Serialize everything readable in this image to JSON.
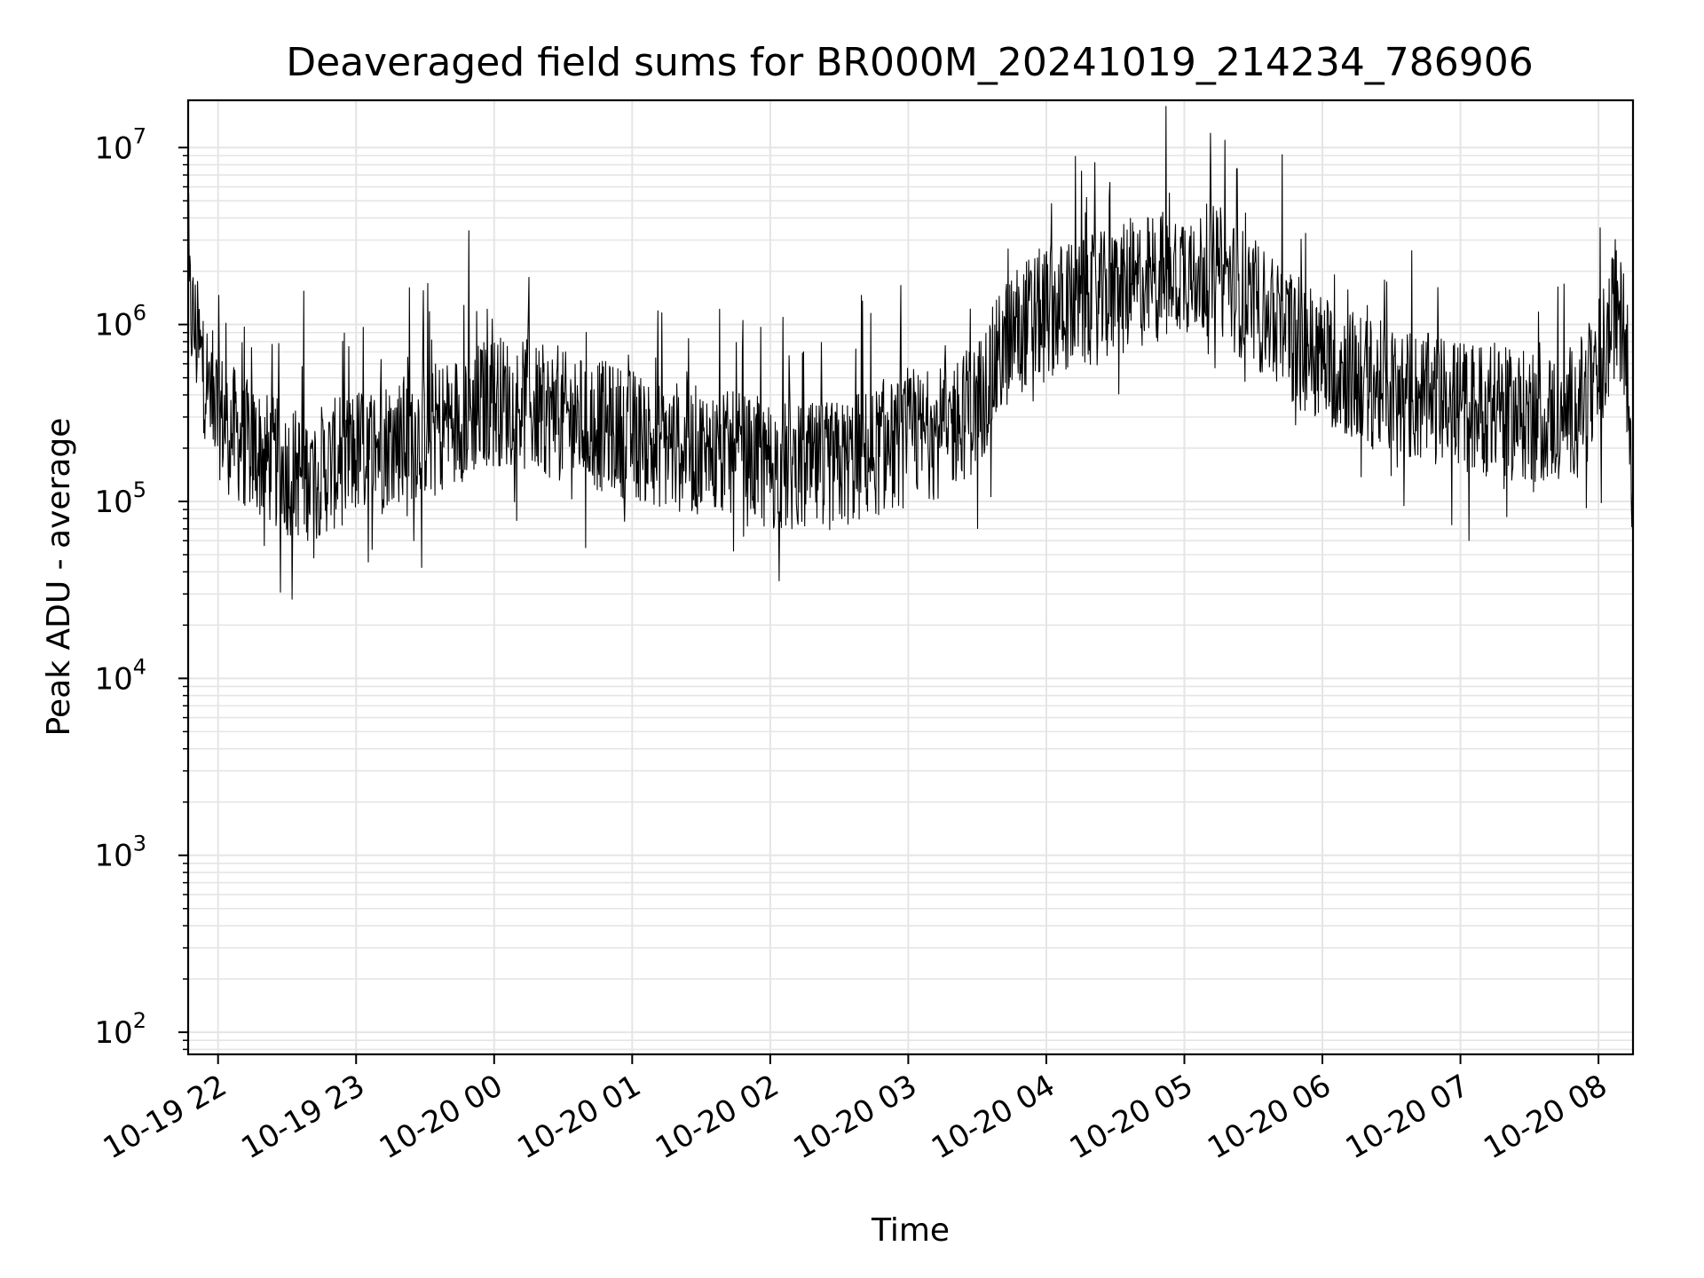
{
  "chart_data": {
    "type": "line",
    "title": "Deaveraged field sums for BR000M_20241019_214234_786906",
    "xlabel": "Time",
    "ylabel": "Peak ADU - average",
    "yscale": "log",
    "xlim": [
      "2024-10-19T21:47:00",
      "2024-10-20T08:15:00"
    ],
    "ylim": [
      75,
      18500000
    ],
    "grid": true,
    "x_ticks": [
      "10-19 22",
      "10-19 23",
      "10-20 00",
      "10-20 01",
      "10-20 02",
      "10-20 03",
      "10-20 04",
      "10-20 05",
      "10-20 06",
      "10-20 07",
      "10-20 08"
    ],
    "y_ticks": [
      {
        "value": 100,
        "base": "10",
        "exp": "2"
      },
      {
        "value": 1000,
        "base": "10",
        "exp": "3"
      },
      {
        "value": 10000,
        "base": "10",
        "exp": "4"
      },
      {
        "value": 100000,
        "base": "10",
        "exp": "5"
      },
      {
        "value": 1000000,
        "base": "10",
        "exp": "6"
      },
      {
        "value": 10000000,
        "base": "10",
        "exp": "7"
      }
    ],
    "line_color": "#000000",
    "grid_color": "#e5e5e5",
    "series": [
      {
        "values": [
          [
            "2024-10-19T21:47:00",
            1400000
          ],
          [
            "2024-10-19T21:50:00",
            900000
          ],
          [
            "2024-10-19T21:53:00",
            600000
          ],
          [
            "2024-10-19T21:56:00",
            450000
          ],
          [
            "2024-10-19T22:00:00",
            320000
          ],
          [
            "2024-10-19T22:10:00",
            220000
          ],
          [
            "2024-10-19T22:20:00",
            180000
          ],
          [
            "2024-10-19T22:30:00",
            150000
          ],
          [
            "2024-10-19T22:40:00",
            140000
          ],
          [
            "2024-10-19T22:50:00",
            160000
          ],
          [
            "2024-10-19T23:00:00",
            190000
          ],
          [
            "2024-10-19T23:15:00",
            220000
          ],
          [
            "2024-10-19T23:30:00",
            250000
          ],
          [
            "2024-10-19T23:45:00",
            300000
          ],
          [
            "2024-10-20T00:00:00",
            380000
          ],
          [
            "2024-10-20T00:15:00",
            340000
          ],
          [
            "2024-10-20T00:30:00",
            300000
          ],
          [
            "2024-10-20T00:45:00",
            270000
          ],
          [
            "2024-10-20T01:00:00",
            240000
          ],
          [
            "2024-10-20T01:15:00",
            210000
          ],
          [
            "2024-10-20T01:30:00",
            190000
          ],
          [
            "2024-10-20T01:45:00",
            175000
          ],
          [
            "2024-10-20T02:00:00",
            160000
          ],
          [
            "2024-10-20T02:15:00",
            150000
          ],
          [
            "2024-10-20T02:30:00",
            160000
          ],
          [
            "2024-10-20T02:45:00",
            190000
          ],
          [
            "2024-10-20T03:00:00",
            220000
          ],
          [
            "2024-10-20T03:15:00",
            250000
          ],
          [
            "2024-10-20T03:30:00",
            350000
          ],
          [
            "2024-10-20T03:45:00",
            900000
          ],
          [
            "2024-10-20T04:00:00",
            1200000
          ],
          [
            "2024-10-20T04:15:00",
            1300000
          ],
          [
            "2024-10-20T04:30:00",
            1500000
          ],
          [
            "2024-10-20T04:45:00",
            1800000
          ],
          [
            "2024-10-20T05:00:00",
            2100000
          ],
          [
            "2024-10-20T05:15:00",
            2000000
          ],
          [
            "2024-10-20T05:30:00",
            1300000
          ],
          [
            "2024-10-20T05:45:00",
            900000
          ],
          [
            "2024-10-20T06:00:00",
            650000
          ],
          [
            "2024-10-20T06:15:00",
            500000
          ],
          [
            "2024-10-20T06:30:00",
            420000
          ],
          [
            "2024-10-20T06:45:00",
            380000
          ],
          [
            "2024-10-20T07:00:00",
            350000
          ],
          [
            "2024-10-20T07:15:00",
            320000
          ],
          [
            "2024-10-20T07:30:00",
            300000
          ],
          [
            "2024-10-20T07:45:00",
            300000
          ],
          [
            "2024-10-20T08:00:00",
            450000
          ],
          [
            "2024-10-20T08:07:00",
            1200000
          ],
          [
            "2024-10-20T08:12:00",
            900000
          ],
          [
            "2024-10-20T08:15:00",
            80000
          ]
        ]
      }
    ]
  }
}
